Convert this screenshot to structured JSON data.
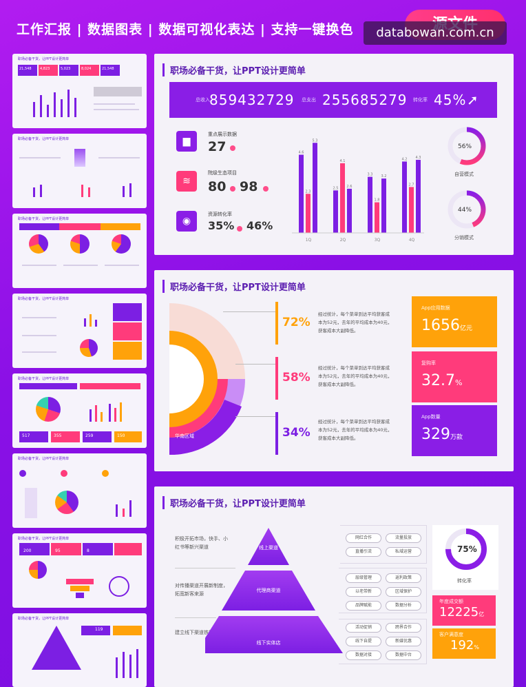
{
  "header": {
    "title": "工作汇报 | 数据图表 | 数据可视化表达 | 支持一键换色",
    "pill": "源文件",
    "watermark": "databowan.com.cn"
  },
  "thumbnails": {
    "title": "职场必备干货，让PPT设计更简单",
    "t1": [
      "21,548",
      "4,823",
      "5,023",
      "8,024",
      "21,548"
    ],
    "t5": [
      "517",
      "355",
      "259",
      "150"
    ],
    "t7": [
      "200",
      "95",
      "8"
    ],
    "t8_tag": "119"
  },
  "panel1": {
    "title": "职场必备干货，让PPT设计更简单",
    "banner": {
      "income_label": "总收入",
      "income": "859432729",
      "expense_label": "总支出",
      "expense": "255685279",
      "rate_label": "转化率",
      "rate": "45%"
    },
    "metrics": [
      {
        "label": "重点展示数据",
        "value1": "27"
      },
      {
        "label": "院级生态项目",
        "value1": "80",
        "value2": "98"
      },
      {
        "label": "资源转化率",
        "value1": "35%",
        "value2": "46%"
      }
    ],
    "rings": [
      {
        "value": "56%",
        "label": "自营模式"
      },
      {
        "value": "44%",
        "label": "分销模式"
      }
    ]
  },
  "chart_data": {
    "type": "bar",
    "categories": [
      "1Q",
      "2Q",
      "3Q",
      "4Q"
    ],
    "series": [
      {
        "values": [
          4.6,
          2.5,
          3.3,
          4.2
        ]
      },
      {
        "values": [
          2.3,
          4.1,
          1.8,
          2.7
        ]
      },
      {
        "values": [
          5.3,
          2.6,
          3.2,
          4.3
        ]
      }
    ],
    "colors": [
      "#7c1fe3",
      "#ff3b7b",
      "#7c1fe3"
    ],
    "ylim": [
      0,
      6
    ]
  },
  "panel2": {
    "title": "职场必备干货，让PPT设计更简单",
    "rows": [
      {
        "pct": "72%",
        "color": "#ffa20a",
        "desc": "经过统计，每个菜单到达平均获客成本为52元，去年的平均成本为40元，获客成本大副降低。"
      },
      {
        "pct": "58%",
        "color": "#ff3b7b",
        "desc": "经过统计，每个菜单到达平均获客成本为52元，去年的平均成本为40元，获客成本大副降低。"
      },
      {
        "pct": "34%",
        "color": "#7c1fe3",
        "desc": "经过统计，每个菜单到达平均获客成本为52元，去年的平均成本为40元，获客成本大副降低。"
      }
    ],
    "fan_label": "华南区域",
    "cards": [
      {
        "label": "App应用数据",
        "value": "1656",
        "unit": "亿元",
        "color": "#ffa20a"
      },
      {
        "label": "复购率",
        "value": "32.7",
        "unit": "%",
        "color": "#ff3b7b"
      },
      {
        "label": "App数量",
        "value": "329",
        "unit": "万款",
        "color": "#8a1ee6"
      }
    ]
  },
  "panel3": {
    "title": "职场必备干货，让PPT设计更简单",
    "side_texts": [
      "积极开拓市场，快手、小红书等新兴渠道",
      "对传播渠道开展新制度，拓宽新客来源",
      "建立线下渠道铁渠道"
    ],
    "levels": [
      "线上渠道",
      "代理商渠道",
      "线下实体店"
    ],
    "tags": [
      [
        "网红合作",
        "流量投放",
        "直播引流",
        "私域运营"
      ],
      [
        "层级管理",
        "返利政策",
        "以老带新",
        "区域保护",
        "品牌赋能",
        "数据分析"
      ],
      [
        "活动促销",
        "跨界合作",
        "线下自提",
        "新媒优惠",
        "数据对接",
        "数据中台"
      ]
    ],
    "ring": {
      "value": "75%",
      "label": "转化率"
    },
    "cards": [
      {
        "label": "年度成交额",
        "value": "12225",
        "unit": "亿",
        "color": "#ff3b7b"
      },
      {
        "label": "客户满意度",
        "value": "192",
        "unit": "%",
        "color": "#ffa20a"
      }
    ]
  }
}
